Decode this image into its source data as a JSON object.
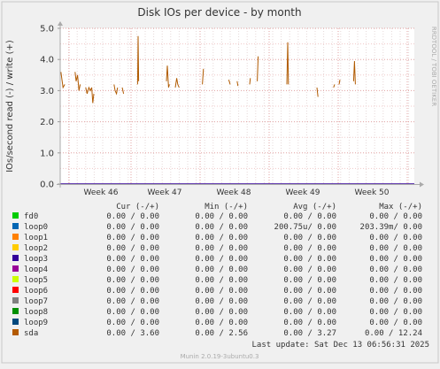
{
  "chart_data": {
    "type": "line",
    "title": "Disk IOs per device - by month",
    "ylabel": "IOs/second read (-) / write (+)",
    "side_label": "RRDTOOL / TOBI OETIKER",
    "ylim": [
      0,
      5
    ],
    "yticks": [
      "0.0",
      "1.0",
      "2.0",
      "3.0",
      "4.0",
      "5.0"
    ],
    "x_ticks": [
      "Week 46",
      "Week 47",
      "Week 48",
      "Week 49",
      "Week 50"
    ],
    "grid": true,
    "series": [
      {
        "name": "sda",
        "color": "#b05a00",
        "segments": [
          [
            [
              0.4,
              3.6
            ],
            [
              1.6,
              3.1
            ],
            [
              2.6,
              3.2
            ]
          ],
          [
            [
              8.4,
              3.6
            ],
            [
              9.0,
              3.3
            ],
            [
              9.8,
              3.5
            ],
            [
              10.6,
              3.0
            ],
            [
              11.3,
              3.2
            ]
          ],
          [
            [
              14.4,
              3.1
            ],
            [
              15.2,
              2.9
            ],
            [
              16.2,
              3.1
            ],
            [
              17.0,
              3.0
            ],
            [
              17.8,
              3.1
            ],
            [
              18.4,
              2.6
            ],
            [
              19.0,
              2.9
            ]
          ],
          [
            [
              30.4,
              3.2
            ],
            [
              31.0,
              3.0
            ],
            [
              31.8,
              2.9
            ],
            [
              32.4,
              3.1
            ]
          ],
          [
            [
              35.0,
              3.1
            ],
            [
              35.8,
              2.9
            ]
          ],
          [
            [
              43.7,
              3.2
            ],
            [
              44.0,
              4.75
            ],
            [
              44.3,
              3.3
            ]
          ],
          [
            [
              60.0,
              3.3
            ],
            [
              60.5,
              3.8
            ],
            [
              61.2,
              3.1
            ],
            [
              61.7,
              3.2
            ]
          ],
          [
            [
              65.0,
              3.1
            ],
            [
              65.8,
              3.4
            ],
            [
              66.4,
              3.2
            ],
            [
              67.2,
              3.1
            ]
          ],
          [
            [
              80.3,
              3.2
            ],
            [
              80.9,
              3.7
            ]
          ],
          [
            [
              95.2,
              3.35
            ],
            [
              96.0,
              3.2
            ]
          ],
          [
            [
              99.9,
              3.3
            ],
            [
              100.4,
              3.15
            ]
          ],
          [
            [
              107.0,
              3.2
            ],
            [
              107.4,
              3.4
            ]
          ],
          [
            [
              111.3,
              3.3
            ],
            [
              111.8,
              4.1
            ]
          ],
          [
            [
              128.0,
              3.2
            ],
            [
              128.5,
              4.55
            ],
            [
              128.9,
              3.2
            ]
          ],
          [
            [
              145.0,
              3.1
            ],
            [
              145.6,
              2.8
            ]
          ],
          [
            [
              154.4,
              3.1
            ],
            [
              155.0,
              3.2
            ]
          ],
          [
            [
              157.5,
              3.2
            ],
            [
              158.0,
              3.35
            ]
          ],
          [
            [
              165.7,
              3.3
            ],
            [
              166.2,
              3.95
            ],
            [
              166.7,
              3.2
            ]
          ]
        ]
      }
    ],
    "legend": {
      "headers": [
        "Cur (-/+)",
        "Min (-/+)",
        "Avg (-/+)",
        "Max (-/+)"
      ],
      "rows": [
        {
          "name": "fd0",
          "color": "#00cc00",
          "cur": "0.00 /  0.00",
          "min": "0.00 /  0.00",
          "avg": "0.00 /  0.00",
          "max": "0.00 /  0.00"
        },
        {
          "name": "loop0",
          "color": "#0066b3",
          "cur": "0.00 /  0.00",
          "min": "0.00 /  0.00",
          "avg": "200.75u/  0.00",
          "max": "203.39m/  0.00"
        },
        {
          "name": "loop1",
          "color": "#ff8000",
          "cur": "0.00 /  0.00",
          "min": "0.00 /  0.00",
          "avg": "0.00 /  0.00",
          "max": "0.00 /  0.00"
        },
        {
          "name": "loop2",
          "color": "#ffcc00",
          "cur": "0.00 /  0.00",
          "min": "0.00 /  0.00",
          "avg": "0.00 /  0.00",
          "max": "0.00 /  0.00"
        },
        {
          "name": "loop3",
          "color": "#330099",
          "cur": "0.00 /  0.00",
          "min": "0.00 /  0.00",
          "avg": "0.00 /  0.00",
          "max": "0.00 /  0.00"
        },
        {
          "name": "loop4",
          "color": "#990099",
          "cur": "0.00 /  0.00",
          "min": "0.00 /  0.00",
          "avg": "0.00 /  0.00",
          "max": "0.00 /  0.00"
        },
        {
          "name": "loop5",
          "color": "#ccff00",
          "cur": "0.00 /  0.00",
          "min": "0.00 /  0.00",
          "avg": "0.00 /  0.00",
          "max": "0.00 /  0.00"
        },
        {
          "name": "loop6",
          "color": "#ff0000",
          "cur": "0.00 /  0.00",
          "min": "0.00 /  0.00",
          "avg": "0.00 /  0.00",
          "max": "0.00 /  0.00"
        },
        {
          "name": "loop7",
          "color": "#808080",
          "cur": "0.00 /  0.00",
          "min": "0.00 /  0.00",
          "avg": "0.00 /  0.00",
          "max": "0.00 /  0.00"
        },
        {
          "name": "loop8",
          "color": "#008f00",
          "cur": "0.00 /  0.00",
          "min": "0.00 /  0.00",
          "avg": "0.00 /  0.00",
          "max": "0.00 /  0.00"
        },
        {
          "name": "loop9",
          "color": "#00487d",
          "cur": "0.00 /  0.00",
          "min": "0.00 /  0.00",
          "avg": "0.00 /  0.00",
          "max": "0.00 /  0.00"
        },
        {
          "name": "sda",
          "color": "#b35a00",
          "cur": "0.00 /  3.60",
          "min": "0.00 /  2.56",
          "avg": "0.00 /  3.27",
          "max": "0.00 / 12.24"
        }
      ]
    },
    "last_update": "Last update:  Sat Dec 13 06:56:31 2025",
    "footer": "Munin 2.0.19-3ubuntu0.3"
  }
}
